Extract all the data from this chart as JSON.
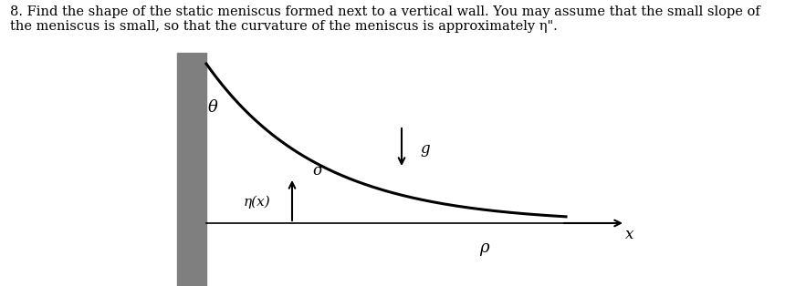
{
  "title_text": "8. Find the shape of the static meniscus formed next to a vertical wall. You may assume that the small slope of\nthe meniscus is small, so that the curvature of the meniscus is approximately η\".",
  "title_fontsize": 10.5,
  "fig_width": 8.83,
  "fig_height": 3.14,
  "bg_color": "#ffffff",
  "wall_color": "#7f7f7f",
  "text_color": "#000000",
  "line_color": "#000000",
  "line_width": 2.2,
  "label_theta": "θ",
  "label_sigma": "σ",
  "label_eta": "η(x)",
  "label_g": "g",
  "label_rho": "ρ",
  "label_x": "x"
}
